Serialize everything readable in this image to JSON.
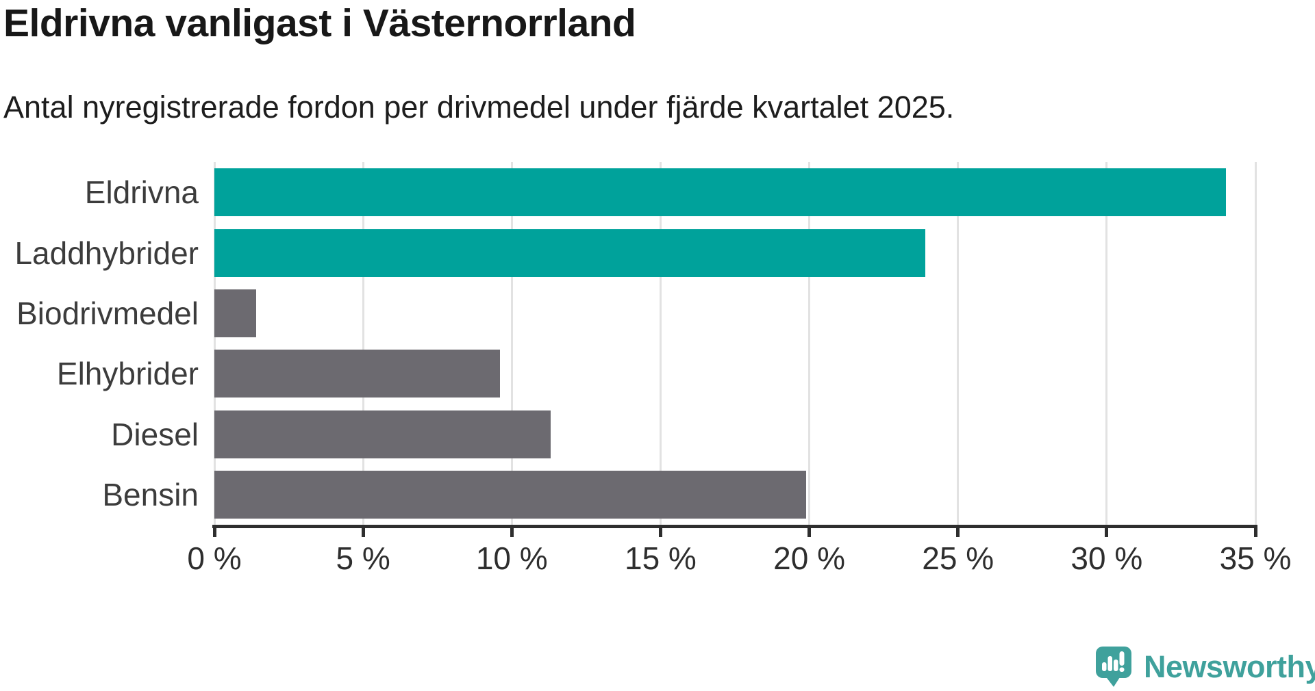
{
  "chart_data": {
    "type": "bar",
    "orientation": "horizontal",
    "title": "Eldrivna vanligast i Västernorrland",
    "subtitle": "Antal nyregistrerade fordon per drivmedel under fjärde kvartalet 2025.",
    "categories": [
      "Eldrivna",
      "Laddhybrider",
      "Biodrivmedel",
      "Elhybrider",
      "Diesel",
      "Bensin"
    ],
    "values": [
      34.0,
      23.9,
      1.4,
      9.6,
      11.3,
      19.9
    ],
    "unit": "%",
    "xlabel": "",
    "ylabel": "",
    "xlim": [
      0,
      35
    ],
    "tick_step": 5,
    "x_ticks": [
      "0 %",
      "5 %",
      "10 %",
      "15 %",
      "20 %",
      "25 %",
      "30 %",
      "35 %"
    ],
    "grid": true,
    "legend": false,
    "highlight_color": "#00a29b",
    "default_color": "#6c6a70",
    "bar_colors": [
      "#00a29b",
      "#00a29b",
      "#6c6a70",
      "#6c6a70",
      "#6c6a70",
      "#6c6a70"
    ]
  },
  "branding": {
    "logo_text": "Newsworthy",
    "logo_color": "#3fa19c",
    "logo_icon": "newsworthy-speech-bubble-bar-chart-icon"
  }
}
